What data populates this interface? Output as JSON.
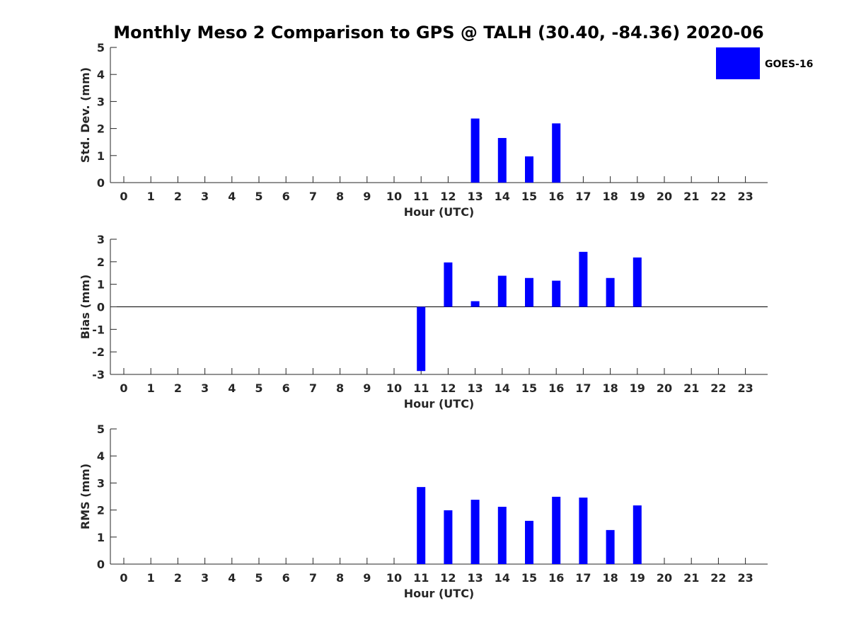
{
  "title": "Monthly Meso 2 Comparison to GPS @ TALH (30.40, -84.36) 2020-06",
  "legend": {
    "label": "GOES-16",
    "color": "#0000ff",
    "placement": "top-right"
  },
  "chart_data": [
    {
      "type": "bar",
      "categories": [
        "0",
        "1",
        "2",
        "3",
        "4",
        "5",
        "6",
        "7",
        "8",
        "9",
        "10",
        "11",
        "12",
        "13",
        "14",
        "15",
        "16",
        "17",
        "18",
        "19",
        "20",
        "21",
        "22",
        "23"
      ],
      "series": [
        {
          "name": "GOES-16",
          "color": "#0000ff",
          "values": [
            null,
            null,
            null,
            null,
            null,
            null,
            null,
            null,
            null,
            null,
            null,
            null,
            null,
            2.37,
            1.65,
            0.97,
            2.19,
            null,
            null,
            null,
            null,
            null,
            null,
            null
          ]
        }
      ],
      "xlabel": "Hour (UTC)",
      "ylabel": "Std. Dev. (mm)",
      "ylim": [
        0,
        5
      ],
      "yticks": [
        "0",
        "1",
        "2",
        "3",
        "4",
        "5"
      ],
      "grid": false
    },
    {
      "type": "bar",
      "categories": [
        "0",
        "1",
        "2",
        "3",
        "4",
        "5",
        "6",
        "7",
        "8",
        "9",
        "10",
        "11",
        "12",
        "13",
        "14",
        "15",
        "16",
        "17",
        "18",
        "19",
        "20",
        "21",
        "22",
        "23"
      ],
      "series": [
        {
          "name": "GOES-16",
          "color": "#0000ff",
          "values": [
            null,
            null,
            null,
            null,
            null,
            null,
            null,
            null,
            null,
            null,
            null,
            -2.85,
            1.97,
            0.25,
            1.38,
            1.28,
            1.16,
            2.44,
            1.28,
            2.19,
            null,
            null,
            null,
            null
          ]
        }
      ],
      "xlabel": "Hour (UTC)",
      "ylabel": "Bias (mm)",
      "ylim": [
        -3,
        3
      ],
      "yticks": [
        "-3",
        "-2",
        "-1",
        "0",
        "1",
        "2",
        "3"
      ],
      "zero_line": true,
      "grid": false
    },
    {
      "type": "bar",
      "categories": [
        "0",
        "1",
        "2",
        "3",
        "4",
        "5",
        "6",
        "7",
        "8",
        "9",
        "10",
        "11",
        "12",
        "13",
        "14",
        "15",
        "16",
        "17",
        "18",
        "19",
        "20",
        "21",
        "22",
        "23"
      ],
      "series": [
        {
          "name": "GOES-16",
          "color": "#0000ff",
          "values": [
            null,
            null,
            null,
            null,
            null,
            null,
            null,
            null,
            null,
            null,
            null,
            2.85,
            1.99,
            2.38,
            2.12,
            1.6,
            2.49,
            2.46,
            1.26,
            2.17,
            null,
            null,
            null,
            null
          ]
        }
      ],
      "xlabel": "Hour (UTC)",
      "ylabel": "RMS (mm)",
      "ylim": [
        0,
        5
      ],
      "yticks": [
        "0",
        "1",
        "2",
        "3",
        "4",
        "5"
      ],
      "grid": false
    }
  ]
}
